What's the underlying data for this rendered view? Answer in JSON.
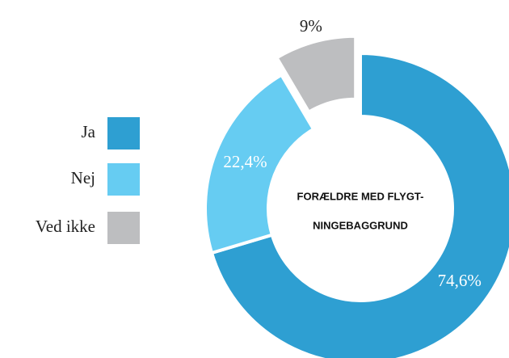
{
  "chart_data": {
    "type": "donut",
    "categories": [
      "Ja",
      "Nej",
      "Ved ikke"
    ],
    "values": [
      74.6,
      22.4,
      9
    ],
    "value_labels": [
      "74,6%",
      "22,4%",
      "9%"
    ],
    "colors": [
      "#2e9fd2",
      "#66ccf2",
      "#bdbec0"
    ],
    "center_label": [
      "FORÆLDRE MED FLYGT-",
      "NINGEBAGGRUND"
    ],
    "legend": "left"
  }
}
